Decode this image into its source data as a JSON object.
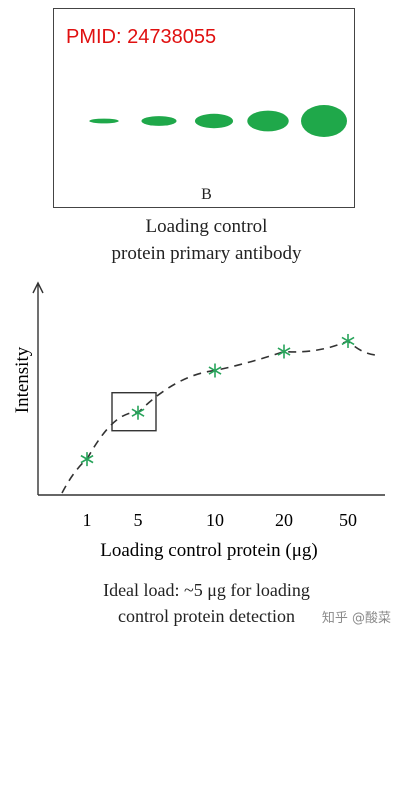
{
  "blot": {
    "pmid": "PMID: 24738055",
    "lane_label": "B",
    "caption_line1": "Loading control",
    "caption_line2": "protein primary antibody",
    "band_color": "#1fa84a",
    "bands": [
      1,
      5,
      10,
      20,
      50
    ]
  },
  "chart_data": {
    "type": "scatter",
    "ylabel": "Intensity",
    "xlabel": "Loading control protein (μg)",
    "x_tick_labels": [
      "1",
      "5",
      "10",
      "20",
      "50"
    ],
    "x_scale": "log",
    "points": [
      {
        "x": 1,
        "y": 0.17
      },
      {
        "x": 5,
        "y": 0.39
      },
      {
        "x": 10,
        "y": 0.59
      },
      {
        "x": 20,
        "y": 0.68
      },
      {
        "x": 50,
        "y": 0.73
      }
    ],
    "fit": "dashed saturation curve",
    "highlight_x": 5,
    "marker_color": "#27a35a"
  },
  "note": {
    "line1": "Ideal load: ~5 μg for loading",
    "line2": "control protein detection"
  },
  "watermark": "知乎 @酸菜"
}
